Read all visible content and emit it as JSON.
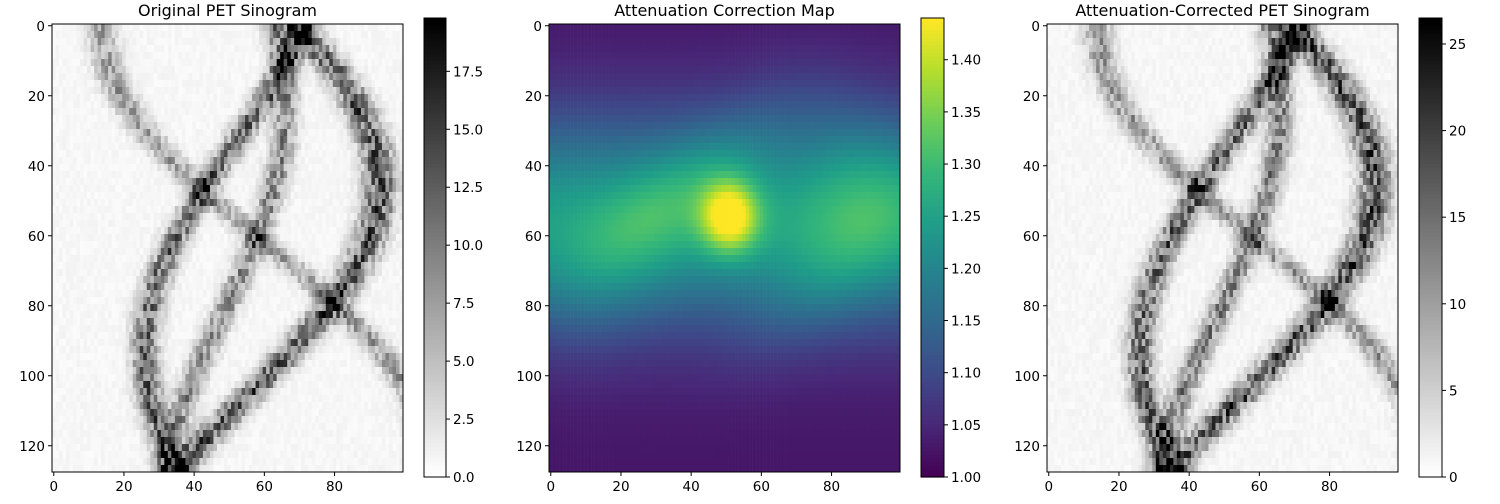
{
  "chart_data": [
    {
      "type": "heatmap",
      "title": "Original PET Sinogram",
      "colormap": "gray_r",
      "rows": 128,
      "cols": 100,
      "xlim": [
        0,
        99
      ],
      "ylim": [
        127,
        0
      ],
      "xticks": [
        0,
        20,
        40,
        60,
        80
      ],
      "yticks": [
        0,
        20,
        40,
        60,
        80,
        100,
        120
      ],
      "colorbar": {
        "range": [
          0,
          19.8
        ],
        "ticks": [
          0.0,
          2.5,
          5.0,
          7.5,
          10.0,
          12.5,
          15.0,
          17.5
        ],
        "tick_labels": [
          "0.0",
          "2.5",
          "5.0",
          "7.5",
          "10.0",
          "12.5",
          "15.0",
          "17.5"
        ]
      }
    },
    {
      "type": "heatmap",
      "title": "Attenuation Correction Map",
      "colormap": "viridis",
      "rows": 128,
      "cols": 100,
      "xlim": [
        0,
        99
      ],
      "ylim": [
        127,
        0
      ],
      "xticks": [
        0,
        20,
        40,
        60,
        80
      ],
      "yticks": [
        0,
        20,
        40,
        60,
        80,
        100,
        120
      ],
      "colorbar": {
        "range": [
          1.0,
          1.44
        ],
        "ticks": [
          1.0,
          1.05,
          1.1,
          1.15,
          1.2,
          1.25,
          1.3,
          1.35,
          1.4
        ],
        "tick_labels": [
          "1.00",
          "1.05",
          "1.10",
          "1.15",
          "1.20",
          "1.25",
          "1.30",
          "1.35",
          "1.40"
        ]
      }
    },
    {
      "type": "heatmap",
      "title": "Attenuation-Corrected PET Sinogram",
      "colormap": "gray_r",
      "rows": 128,
      "cols": 100,
      "xlim": [
        0,
        99
      ],
      "ylim": [
        127,
        0
      ],
      "xticks": [
        0,
        20,
        40,
        60,
        80
      ],
      "yticks": [
        0,
        20,
        40,
        60,
        80,
        100,
        120
      ],
      "colorbar": {
        "range": [
          0,
          26.5
        ],
        "ticks": [
          0,
          5,
          10,
          15,
          20,
          25
        ],
        "tick_labels": [
          "0",
          "5",
          "10",
          "15",
          "20",
          "25"
        ]
      }
    }
  ]
}
